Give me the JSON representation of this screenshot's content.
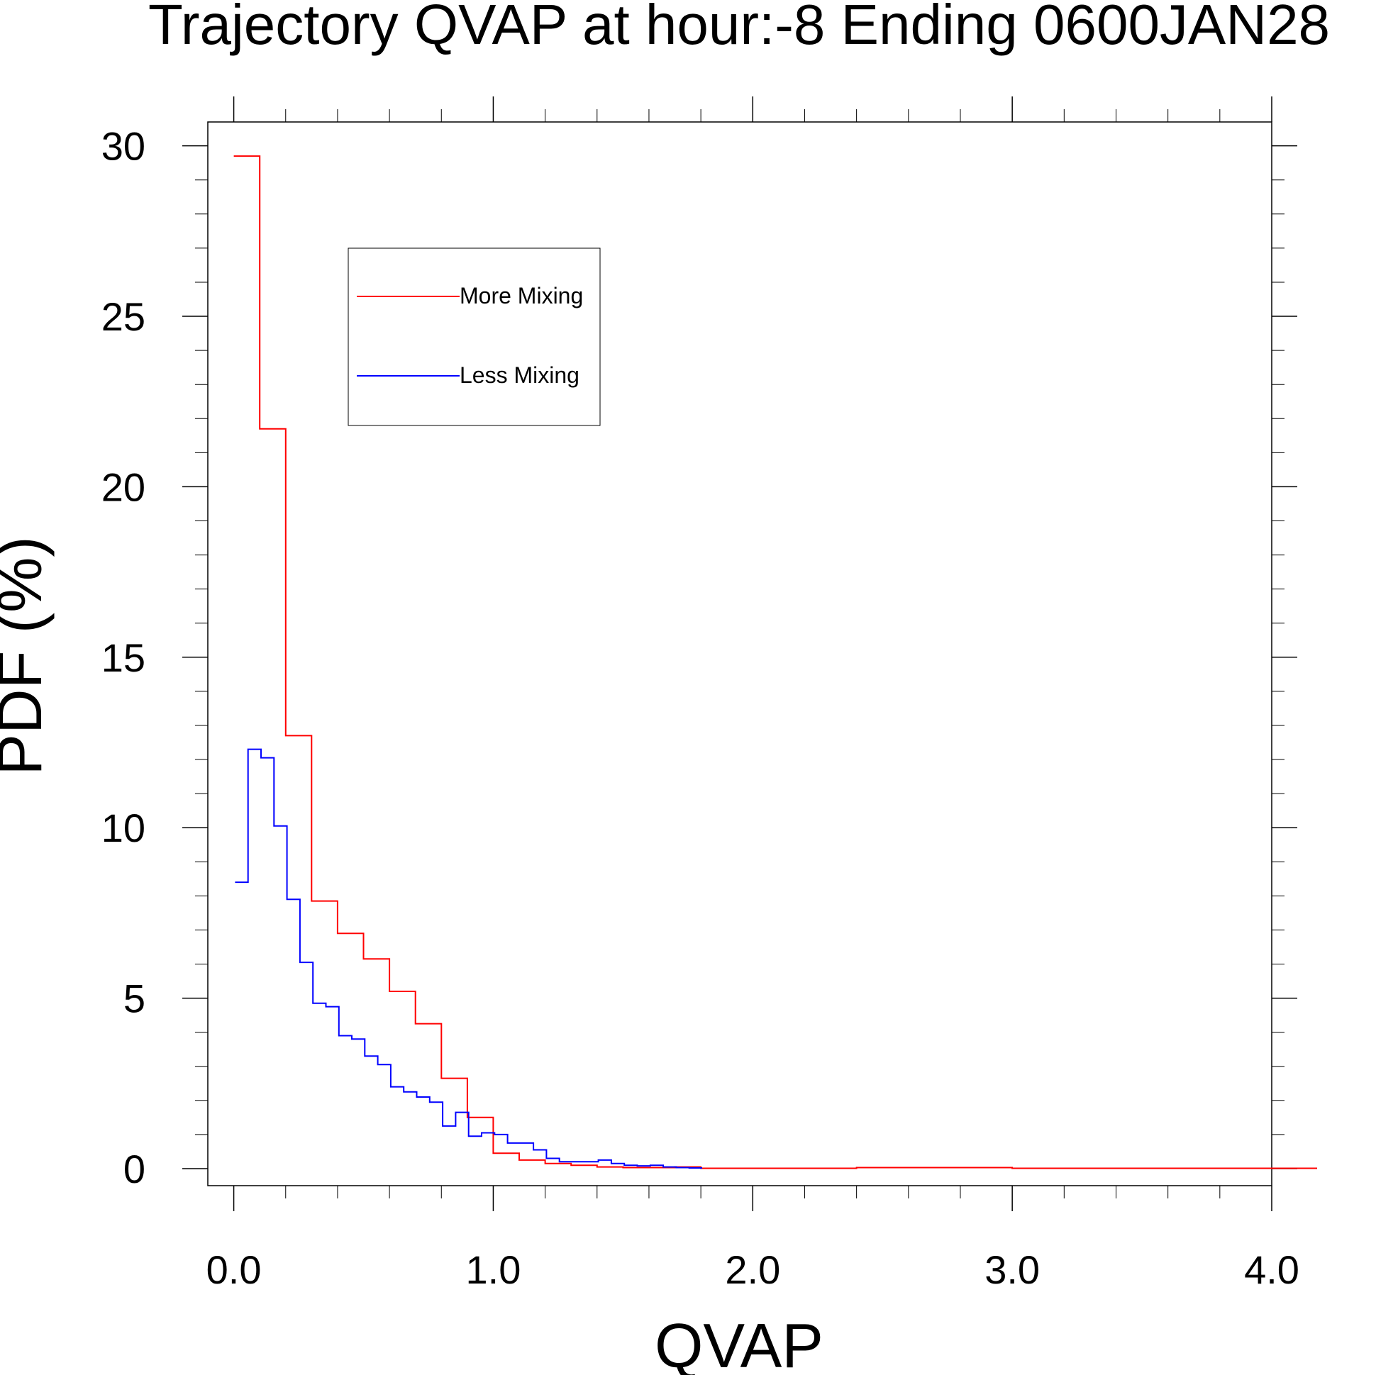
{
  "chart_data": {
    "type": "line",
    "style": "step histogram",
    "title": "Trajectory QVAP at hour:-8 Ending 0600JAN28",
    "xlabel": "QVAP",
    "ylabel": "PDF (%)",
    "xlim": [
      -0.1,
      4.0
    ],
    "ylim": [
      -0.5,
      30.7
    ],
    "x_ticks": [
      0.0,
      1.0,
      2.0,
      3.0,
      4.0
    ],
    "x_tick_labels": [
      "0.0",
      "1.0",
      "2.0",
      "3.0",
      "4.0"
    ],
    "y_ticks": [
      0,
      5,
      10,
      15,
      20,
      25,
      30
    ],
    "y_tick_labels": [
      "0",
      "5",
      "10",
      "15",
      "20",
      "25",
      "30"
    ],
    "grid": false,
    "legend_position": "upper-left inside plot",
    "series": [
      {
        "name": "More Mixing",
        "color": "#ff0000",
        "x": [
          0.05,
          0.15,
          0.25,
          0.35,
          0.45,
          0.55,
          0.65,
          0.75,
          0.85,
          0.95,
          1.05,
          1.15,
          1.25,
          1.35,
          1.45,
          1.55,
          1.65,
          1.75,
          1.85,
          2.95,
          3.05,
          3.8
        ],
        "y": [
          29.7,
          21.7,
          12.7,
          7.85,
          6.9,
          6.15,
          5.2,
          4.25,
          2.65,
          1.5,
          0.45,
          0.25,
          0.15,
          0.1,
          0.05,
          0.03,
          0.03,
          0.05,
          0.01,
          0.03,
          0.01,
          0.01
        ]
      },
      {
        "name": "Less Mixing",
        "color": "#0000ff",
        "x": [
          0.03,
          0.08,
          0.13,
          0.18,
          0.23,
          0.28,
          0.33,
          0.38,
          0.43,
          0.48,
          0.53,
          0.58,
          0.63,
          0.68,
          0.73,
          0.78,
          0.83,
          0.88,
          0.93,
          0.98,
          1.03,
          1.08,
          1.13,
          1.18,
          1.23,
          1.28,
          1.33,
          1.38,
          1.43,
          1.48,
          1.53,
          1.58,
          1.63,
          1.68,
          1.73,
          1.78
        ],
        "y": [
          8.4,
          12.3,
          12.05,
          10.05,
          7.9,
          6.05,
          4.85,
          4.75,
          3.9,
          3.8,
          3.3,
          3.05,
          2.4,
          2.25,
          2.1,
          1.95,
          1.25,
          1.65,
          0.95,
          1.05,
          1.0,
          0.75,
          0.75,
          0.55,
          0.3,
          0.2,
          0.2,
          0.2,
          0.25,
          0.15,
          0.1,
          0.08,
          0.1,
          0.05,
          0.03,
          0.02
        ]
      }
    ]
  }
}
